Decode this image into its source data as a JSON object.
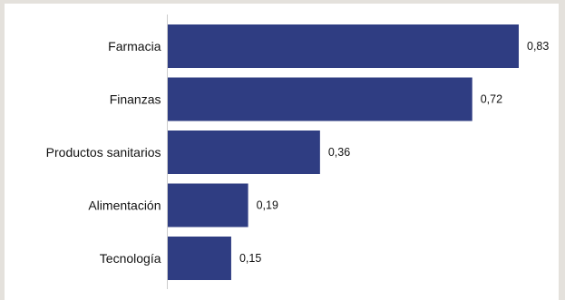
{
  "colors": {
    "bar": "#2f3d82",
    "axis": "#cccccc",
    "page_background": "#e4e1dc",
    "plot_background": "#ffffff"
  },
  "chart_data": {
    "type": "bar",
    "orientation": "horizontal",
    "categories": [
      "Farmacia",
      "Finanzas",
      "Productos sanitarios",
      "Alimentación",
      "Tecnología"
    ],
    "values": [
      0.83,
      0.72,
      0.36,
      0.19,
      0.15
    ],
    "value_labels": [
      "0,83",
      "0,72",
      "0,36",
      "0,19",
      "0,15"
    ],
    "xlim": [
      0,
      0.83
    ],
    "grid": false,
    "legend": "none"
  }
}
